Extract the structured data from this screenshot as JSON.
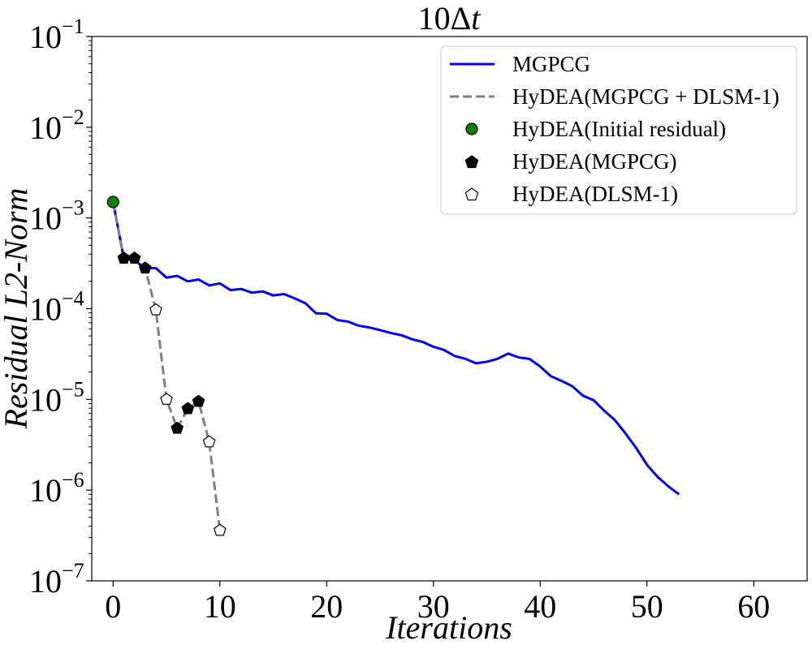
{
  "chart_data": {
    "type": "line",
    "title": "10Δt",
    "title_base": "10Δ",
    "title_var": "t",
    "xlabel": "Iterations",
    "ylabel": "Residual L2-Norm",
    "yscale": "log",
    "xlim": [
      -2,
      65
    ],
    "ylim": [
      1e-07,
      0.1
    ],
    "xticks": [
      0,
      10,
      20,
      30,
      40,
      50,
      60
    ],
    "xtick_labels": [
      "0",
      "10",
      "20",
      "30",
      "40",
      "50",
      "60"
    ],
    "ytick_exponents": [
      -7,
      -6,
      -5,
      -4,
      -3,
      -2,
      -1
    ],
    "ytick_base": "10",
    "ytick_sup_labels": [
      "−7",
      "−6",
      "−5",
      "−4",
      "−3",
      "−2",
      "−1"
    ],
    "legend_position": "top-right",
    "colors": {
      "mgpcg": "#0000ee",
      "hydea_line": "#808080",
      "initial": "#0b8000",
      "marker_black": "#000000",
      "marker_white": "#ffffff"
    },
    "series": [
      {
        "name": "MGPCG",
        "style": "solid",
        "x": [
          0,
          1,
          2,
          3,
          4,
          5,
          6,
          7,
          8,
          9,
          10,
          11,
          12,
          13,
          14,
          15,
          16,
          17,
          18,
          19,
          20,
          21,
          22,
          23,
          24,
          25,
          26,
          27,
          28,
          29,
          30,
          31,
          32,
          33,
          34,
          35,
          36,
          37,
          38,
          39,
          40,
          41,
          42,
          43,
          44,
          45,
          46,
          47,
          48,
          49,
          50,
          51,
          52,
          53
        ],
        "y": [
          0.0015,
          0.00036,
          0.00034,
          0.00028,
          0.00028,
          0.00022,
          0.00023,
          0.0002,
          0.00021,
          0.00018,
          0.00019,
          0.00016,
          0.000165,
          0.00015,
          0.000155,
          0.00014,
          0.000145,
          0.00013,
          0.000115,
          8.9e-05,
          8.8e-05,
          7.5e-05,
          7.2e-05,
          6.5e-05,
          6.2e-05,
          5.8e-05,
          5.4e-05,
          5.1e-05,
          4.6e-05,
          4.3e-05,
          3.8e-05,
          3.5e-05,
          3e-05,
          2.8e-05,
          2.5e-05,
          2.6e-05,
          2.8e-05,
          3.2e-05,
          2.9e-05,
          2.8e-05,
          2.3e-05,
          1.8e-05,
          1.6e-05,
          1.4e-05,
          1.1e-05,
          9.8e-06,
          7.5e-06,
          5.9e-06,
          4.2e-06,
          2.9e-06,
          1.9e-06,
          1.4e-06,
          1.1e-06,
          9e-07
        ]
      },
      {
        "name": "HyDEA(MGPCG + DLSM-1)",
        "style": "dashed",
        "x": [
          0,
          1,
          2,
          3,
          4,
          5,
          6,
          7,
          8,
          9,
          10
        ],
        "y": [
          0.0015,
          0.00036,
          0.00036,
          0.00028,
          9.7e-05,
          1e-05,
          4.8e-06,
          7.9e-06,
          9.5e-06,
          3.4e-06,
          3.6e-07
        ]
      }
    ],
    "markers": {
      "initial_residual": {
        "name": "HyDEA(Initial residual)",
        "x": [
          0
        ],
        "y": [
          0.0015
        ]
      },
      "mgpcg_steps": {
        "name": "HyDEA(MGPCG)",
        "x": [
          1,
          2,
          3,
          6,
          7,
          8
        ],
        "y": [
          0.00036,
          0.00036,
          0.00028,
          4.8e-06,
          7.9e-06,
          9.5e-06
        ]
      },
      "dlsm_steps": {
        "name": "HyDEA(DLSM-1)",
        "x": [
          4,
          5,
          9,
          10
        ],
        "y": [
          9.7e-05,
          1e-05,
          3.4e-06,
          3.6e-07
        ]
      }
    },
    "legend": [
      {
        "label": "MGPCG",
        "kind": "line-solid"
      },
      {
        "label": "HyDEA(MGPCG + DLSM-1)",
        "kind": "line-dashed"
      },
      {
        "label": "HyDEA(Initial residual)",
        "kind": "circle-green"
      },
      {
        "label": "HyDEA(MGPCG)",
        "kind": "pentagon-black"
      },
      {
        "label": "HyDEA(DLSM-1)",
        "kind": "pentagon-white"
      }
    ]
  }
}
